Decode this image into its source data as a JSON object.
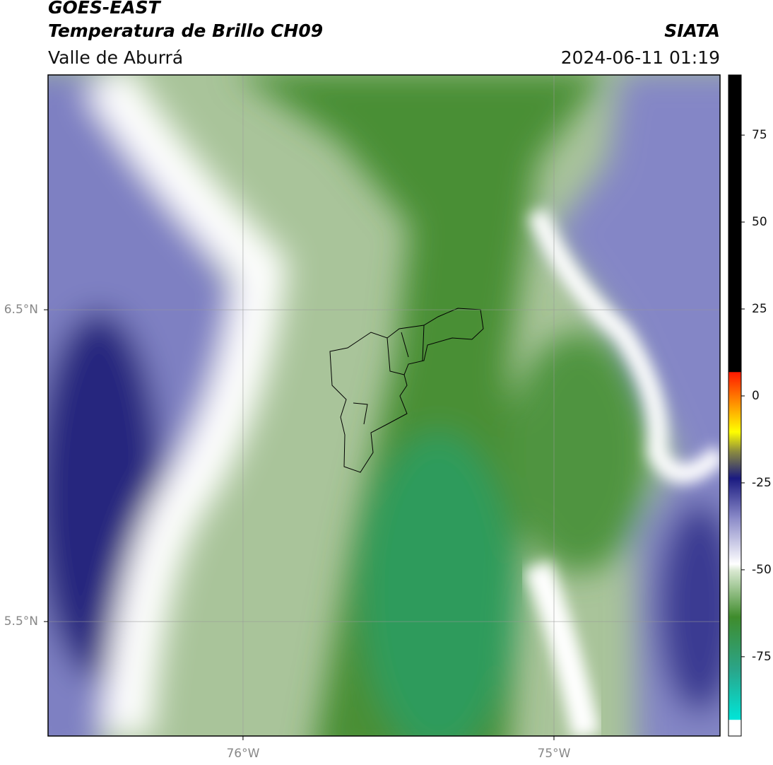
{
  "header": {
    "title": "GOES-EAST",
    "subtitle": "Temperatura de Brillo CH09",
    "region": "Valle de Aburrá",
    "source": "SIATA",
    "datetime": "2024-06-11 01:19"
  },
  "map": {
    "xlim": [
      -76.627,
      -74.466
    ],
    "ylim": [
      5.133,
      7.253
    ],
    "xticks": [
      {
        "value": -76,
        "label": "76°W"
      },
      {
        "value": -75,
        "label": "75°W"
      }
    ],
    "yticks": [
      {
        "value": 6.5,
        "label": "6.5°N"
      },
      {
        "value": 5.5,
        "label": "5.5°N"
      }
    ],
    "grid": true
  },
  "colorbar": {
    "lim": [
      -97.8,
      92.3
    ],
    "ticks": [
      -75,
      -50,
      -25,
      0,
      25,
      50,
      75
    ]
  }
}
